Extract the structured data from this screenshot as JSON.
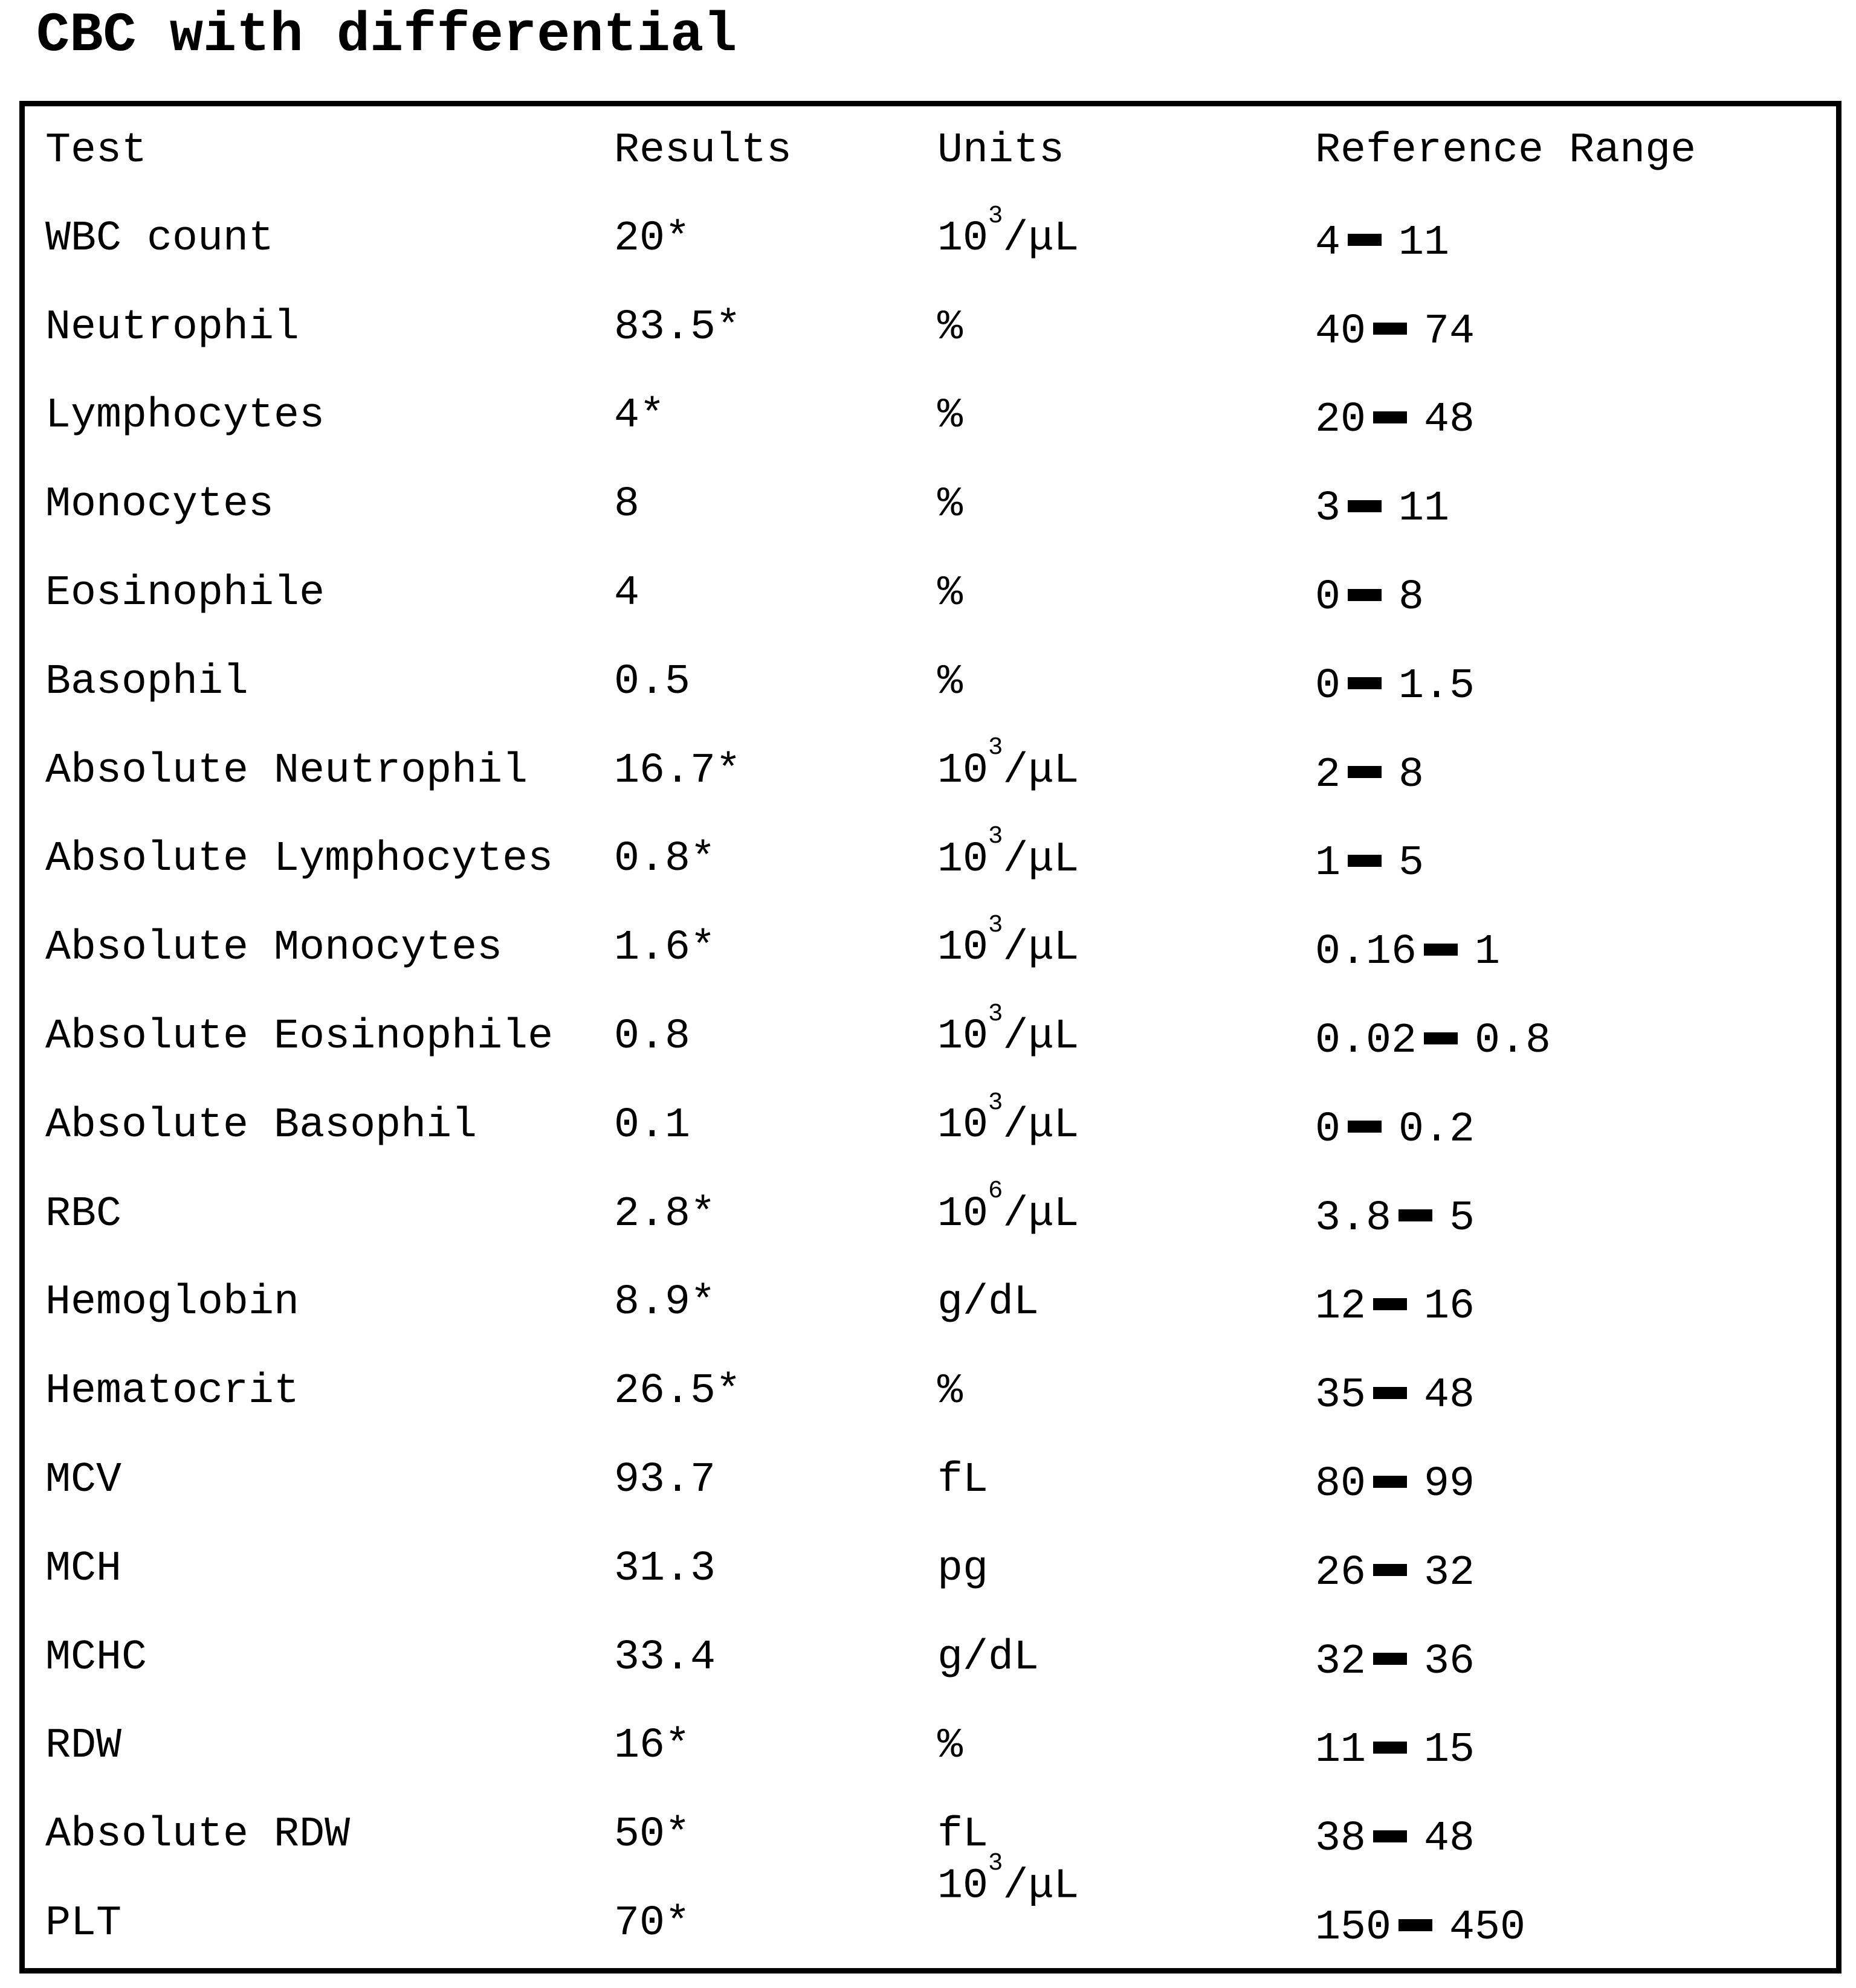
{
  "title": "CBC with differential",
  "colors": {
    "text": "#000000",
    "background": "#ffffff",
    "border": "#000000"
  },
  "table": {
    "headers": [
      "Test",
      "Results",
      "Units",
      "Reference Range"
    ],
    "rows": [
      {
        "test": "WBC count",
        "result": "20*",
        "units": {
          "prefix": "10",
          "sup": "3",
          "suffix": "/μL"
        },
        "range": {
          "low": "4",
          "high": "11"
        }
      },
      {
        "test": "Neutrophil",
        "result": "83.5*",
        "units": {
          "text": "%"
        },
        "range": {
          "low": "40",
          "high": "74"
        }
      },
      {
        "test": "Lymphocytes",
        "result": "4*",
        "units": {
          "text": "%"
        },
        "range": {
          "low": "20",
          "high": "48"
        }
      },
      {
        "test": "Monocytes",
        "result": "8",
        "units": {
          "text": "%"
        },
        "range": {
          "low": "3",
          "high": "11"
        }
      },
      {
        "test": "Eosinophile",
        "result": "4",
        "units": {
          "text": "%"
        },
        "range": {
          "low": "0",
          "high": "8"
        }
      },
      {
        "test": "Basophil",
        "result": "0.5",
        "units": {
          "text": "%"
        },
        "range": {
          "low": "0",
          "high": "1.5"
        }
      },
      {
        "test": "Absolute Neutrophil",
        "result": "16.7*",
        "units": {
          "prefix": "10",
          "sup": "3",
          "suffix": "/μL"
        },
        "range": {
          "low": "2",
          "high": "8"
        }
      },
      {
        "test": "Absolute Lymphocytes",
        "result": "0.8*",
        "units": {
          "prefix": "10",
          "sup": "3",
          "suffix": "/μL"
        },
        "range": {
          "low": "1",
          "high": "5"
        }
      },
      {
        "test": "Absolute Monocytes",
        "result": "1.6*",
        "units": {
          "prefix": "10",
          "sup": "3",
          "suffix": "/μL"
        },
        "range": {
          "low": "0.16",
          "high": "1"
        }
      },
      {
        "test": "Absolute Eosinophile",
        "result": "0.8",
        "units": {
          "prefix": "10",
          "sup": "3",
          "suffix": "/μL"
        },
        "range": {
          "low": "0.02",
          "high": "0.8"
        }
      },
      {
        "test": "Absolute Basophil",
        "result": "0.1",
        "units": {
          "prefix": "10",
          "sup": "3",
          "suffix": "/μL"
        },
        "range": {
          "low": "0",
          "high": "0.2"
        }
      },
      {
        "test": "RBC",
        "result": "2.8*",
        "units": {
          "prefix": "10",
          "sup": "6",
          "suffix": "/μL"
        },
        "range": {
          "low": "3.8",
          "high": "5"
        }
      },
      {
        "test": "Hemoglobin",
        "result": "8.9*",
        "units": {
          "text": "g/dL"
        },
        "range": {
          "low": "12",
          "high": "16"
        }
      },
      {
        "test": "Hematocrit",
        "result": "26.5*",
        "units": {
          "text": "%"
        },
        "range": {
          "low": "35",
          "high": "48"
        }
      },
      {
        "test": "MCV",
        "result": "93.7",
        "units": {
          "text": "fL"
        },
        "range": {
          "low": "80",
          "high": "99"
        }
      },
      {
        "test": "MCH",
        "result": "31.3",
        "units": {
          "text": "pg"
        },
        "range": {
          "low": "26",
          "high": "32"
        }
      },
      {
        "test": "MCHC",
        "result": "33.4",
        "units": {
          "text": "g/dL"
        },
        "range": {
          "low": "32",
          "high": "36"
        }
      },
      {
        "test": "RDW",
        "result": "16*",
        "units": {
          "text": "%"
        },
        "range": {
          "low": "11",
          "high": "15"
        }
      },
      {
        "test": "Absolute RDW",
        "result": "50*",
        "units": {
          "text": "fL"
        },
        "range": {
          "low": "38",
          "high": "48"
        }
      },
      {
        "test": "PLT",
        "result": "70*",
        "units": {
          "prefix": "10",
          "sup": "3",
          "suffix": "/μL",
          "raised": true
        },
        "range": {
          "low": "150",
          "high": "450"
        }
      }
    ]
  }
}
